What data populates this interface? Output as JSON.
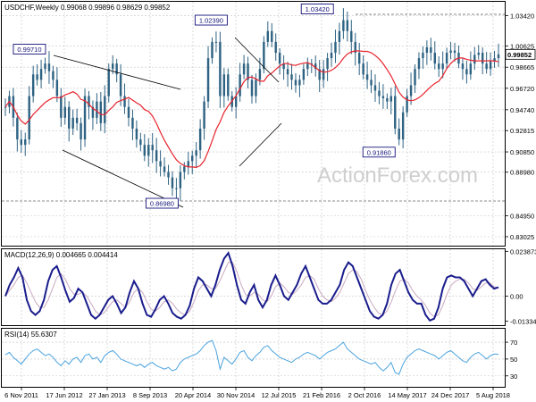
{
  "colors": {
    "candle": "#2f6383",
    "sma": "#e8232d",
    "macd": "#1a1d8c",
    "signal": "#c9a9c0",
    "rsi": "#4aa3df",
    "trendline": "#000000",
    "grid": "#c4c4c4",
    "frame": "#000000",
    "label_border": "#14147c",
    "label_text": "#14147c",
    "watermark": "#cfcfcf"
  },
  "watermark": "ActionForex.com",
  "chart_data": [
    {
      "type": "candlestick",
      "title": "USDCHF,Weekly  0.99068 0.99896 0.98629 0.99852",
      "ylim": [
        0.822,
        1.047
      ],
      "y_ticks": [
        "1.03420",
        "1.00625",
        "0.98665",
        "0.96720",
        "0.94740",
        "0.92815",
        "0.90850",
        "0.88980",
        "0.84950",
        "0.83025"
      ],
      "last_price": "0.99852",
      "price_labels": [
        "1.03420",
        "1.02390",
        "0.99710",
        "0.86980",
        "0.91860"
      ],
      "close_series": [
        0.95,
        0.96,
        0.94,
        0.92,
        0.915,
        0.92,
        0.96,
        0.98,
        0.975,
        0.985,
        0.99,
        0.983,
        0.975,
        0.96,
        0.94,
        0.95,
        0.93,
        0.94,
        0.935,
        0.92,
        0.96,
        0.95,
        0.94,
        0.955,
        0.935,
        0.96,
        0.985,
        0.99,
        0.98,
        0.96,
        0.95,
        0.94,
        0.93,
        0.92,
        0.915,
        0.905,
        0.915,
        0.91,
        0.9,
        0.895,
        0.89,
        0.885,
        0.875,
        0.875,
        0.89,
        0.895,
        0.9,
        0.905,
        0.91,
        0.93,
        0.955,
        0.995,
        1.01,
        1.01,
        0.96,
        0.98,
        0.96,
        0.95,
        0.96,
        0.98,
        0.99,
        0.975,
        0.96,
        0.975,
        0.985,
        1.01,
        1.02,
        1.01,
        1.0,
        0.99,
        0.985,
        0.98,
        0.975,
        0.97,
        0.975,
        0.985,
        0.99,
        0.99,
        0.985,
        0.975,
        0.985,
        0.995,
        1.0,
        1.01,
        1.02,
        1.03,
        1.02,
        1.01,
        1.0,
        0.99,
        0.98,
        0.975,
        0.97,
        0.965,
        0.96,
        0.958,
        0.955,
        0.96,
        0.93,
        0.92,
        0.945,
        0.96,
        0.97,
        0.985,
        0.995,
        1.0,
        1.005,
        1.0,
        0.99,
        0.985,
        0.99,
        1.0,
        1.002,
        1.0,
        0.99,
        0.985,
        0.98,
        0.99,
        0.998,
        1.0,
        0.99,
        0.985,
        0.992,
        0.995,
        0.9985
      ]
    },
    {
      "type": "line",
      "title": "MACD(12,26,9) 0.004665 0.004414",
      "ylim": [
        -0.0155,
        0.025
      ],
      "y_ticks": [
        "0.023873",
        "0.00",
        "-0.013346"
      ],
      "series": [
        {
          "values": [
            0.0,
            0.006,
            0.01,
            0.015,
            0.01,
            -0.002,
            -0.008,
            -0.01,
            -0.008,
            -0.002,
            0.008,
            0.014,
            0.016,
            0.01,
            0.003,
            -0.003,
            -0.001,
            0.004,
            0.002,
            -0.004,
            -0.01,
            -0.012,
            -0.01,
            -0.006,
            -0.002,
            0.0,
            -0.004,
            -0.009,
            -0.006,
            0.002,
            0.008,
            0.004,
            -0.004,
            -0.01,
            -0.011,
            -0.007,
            -0.002,
            0.0,
            -0.004,
            -0.009,
            -0.011,
            -0.012,
            -0.01,
            -0.005,
            0.004,
            0.01,
            0.008,
            0.004,
            0.0,
            0.006,
            0.014,
            0.02,
            0.023,
            0.016,
            0.006,
            -0.002,
            -0.004,
            0.002,
            0.006,
            -0.002,
            -0.006,
            -0.002,
            0.006,
            0.011,
            0.006,
            0.0,
            -0.002,
            0.002,
            0.006,
            0.012,
            0.016,
            0.01,
            0.004,
            -0.002,
            -0.004,
            -0.004,
            -0.002,
            0.002,
            0.006,
            0.014,
            0.018,
            0.016,
            0.01,
            0.004,
            -0.002,
            -0.008,
            -0.011,
            -0.012,
            -0.01,
            -0.004,
            0.006,
            0.012,
            0.014,
            0.008,
            0.002,
            -0.002,
            -0.004,
            -0.004,
            -0.01,
            -0.013,
            -0.012,
            -0.006,
            0.004,
            0.01,
            0.011,
            0.01,
            0.01,
            0.008,
            0.004,
            0.0,
            0.004,
            0.008,
            0.009,
            0.006,
            0.004,
            0.0047
          ]
        },
        {
          "values": [
            0.0,
            0.003,
            0.006,
            0.01,
            0.011,
            0.007,
            0.002,
            -0.003,
            -0.006,
            -0.006,
            -0.002,
            0.004,
            0.01,
            0.012,
            0.009,
            0.004,
            0.001,
            0.001,
            0.002,
            0.0,
            -0.004,
            -0.008,
            -0.01,
            -0.009,
            -0.006,
            -0.003,
            -0.002,
            -0.004,
            -0.006,
            -0.003,
            0.002,
            0.004,
            0.002,
            -0.003,
            -0.007,
            -0.008,
            -0.006,
            -0.003,
            -0.002,
            -0.004,
            -0.007,
            -0.009,
            -0.01,
            -0.008,
            -0.003,
            0.003,
            0.006,
            0.006,
            0.004,
            0.004,
            0.008,
            0.013,
            0.018,
            0.018,
            0.013,
            0.006,
            0.001,
            0.0,
            0.002,
            0.001,
            -0.002,
            -0.003,
            0.0,
            0.005,
            0.007,
            0.005,
            0.002,
            0.001,
            0.003,
            0.006,
            0.01,
            0.011,
            0.009,
            0.004,
            0.0,
            -0.002,
            -0.003,
            -0.001,
            0.002,
            0.007,
            0.012,
            0.014,
            0.013,
            0.009,
            0.003,
            -0.002,
            -0.006,
            -0.009,
            -0.01,
            -0.008,
            -0.003,
            0.003,
            0.008,
            0.009,
            0.007,
            0.003,
            0.0,
            -0.002,
            -0.005,
            -0.009,
            -0.011,
            -0.01,
            -0.005,
            0.001,
            0.006,
            0.008,
            0.009,
            0.009,
            0.007,
            0.004,
            0.003,
            0.005,
            0.007,
            0.007,
            0.005,
            0.0044
          ]
        }
      ]
    },
    {
      "type": "line",
      "title": "RSI(14) 55.6307",
      "ylim": [
        17,
        86
      ],
      "y_ticks": [
        "70",
        "50",
        "30"
      ],
      "series": [
        {
          "values": [
            55,
            58,
            52,
            48,
            44,
            50,
            56,
            60,
            62,
            58,
            54,
            56,
            52,
            46,
            42,
            48,
            44,
            50,
            52,
            46,
            54,
            56,
            50,
            52,
            46,
            54,
            58,
            60,
            56,
            50,
            48,
            46,
            44,
            42,
            44,
            40,
            44,
            46,
            42,
            40,
            38,
            40,
            36,
            38,
            46,
            50,
            52,
            54,
            56,
            60,
            66,
            70,
            72,
            60,
            38,
            52,
            48,
            44,
            50,
            58,
            60,
            52,
            48,
            54,
            58,
            64,
            66,
            60,
            56,
            52,
            50,
            48,
            46,
            50,
            52,
            56,
            58,
            56,
            54,
            50,
            54,
            58,
            60,
            62,
            66,
            70,
            62,
            58,
            54,
            50,
            48,
            46,
            44,
            46,
            40,
            36,
            40,
            46,
            34,
            32,
            44,
            52,
            56,
            60,
            62,
            60,
            58,
            56,
            54,
            50,
            54,
            58,
            60,
            56,
            52,
            48,
            46,
            52,
            56,
            58,
            54,
            50,
            54,
            56,
            55.6
          ]
        }
      ]
    }
  ],
  "x_labels": [
    "6 Nov 2011",
    "17 Jun 2012",
    "27 Jan 2013",
    "8 Sep 2013",
    "20 Apr 2014",
    "30 Nov 2014",
    "12 Jul 2015",
    "21 Feb 2016",
    "2 Oct 2016",
    "14 May 2017",
    "24 Dec 2017",
    "5 Aug 2018"
  ]
}
